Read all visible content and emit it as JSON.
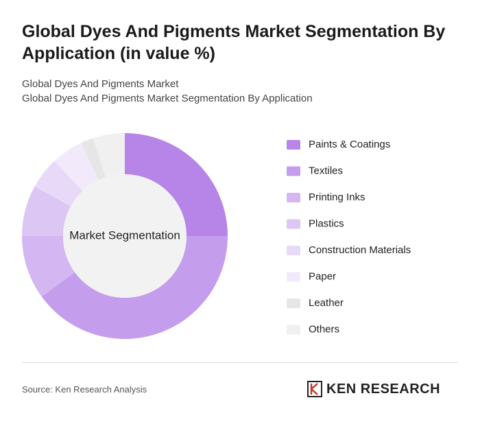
{
  "chart_data": {
    "type": "donut",
    "title": "Global Dyes And Pigments Market Segmentation By Application (in value %)",
    "subtitles": [
      "Global Dyes And Pigments Market",
      "Global Dyes And Pigments Market Segmentation By Application"
    ],
    "center_label": "Market Segmentation",
    "categories": [
      "Paints & Coatings",
      "Textiles",
      "Printing Inks",
      "Plastics",
      "Construction Materials",
      "Paper",
      "Leather",
      "Others"
    ],
    "values": [
      25,
      40,
      10,
      8,
      5,
      5,
      2,
      5
    ],
    "colors": [
      "#b784e8",
      "#c59ded",
      "#d4b7f2",
      "#dcc6f4",
      "#e8d9f8",
      "#f2eafb",
      "#e6e6e6",
      "#f0f0f0"
    ],
    "source": "Source: Ken Research Analysis"
  },
  "brand": "KEN RESEARCH"
}
